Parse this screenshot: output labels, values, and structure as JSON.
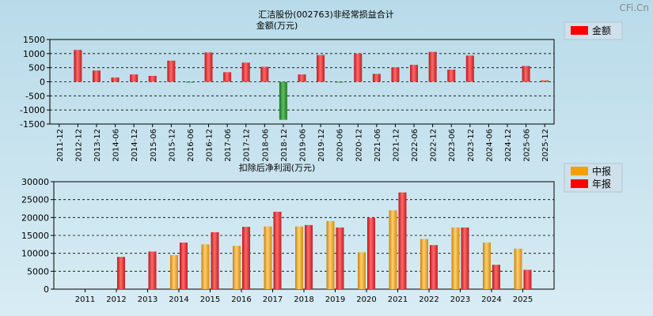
{
  "watermark": "CFi.Cn",
  "colors": {
    "red": "#e8383c",
    "orange": "#f0a020",
    "green": "#2f8f34",
    "grid": "#000000"
  },
  "chart_data": [
    {
      "type": "bar",
      "title": "汇洁股份(002763)非经常损益合计",
      "ylabel": "金额(万元)",
      "legend": {
        "position": "top-right",
        "entries": [
          "金额"
        ]
      },
      "grid": true,
      "ylim": [
        -1500,
        1500
      ],
      "yticks": [
        1500,
        1000,
        500,
        0,
        -500,
        -1000,
        -1500
      ],
      "categories": [
        "2011-12",
        "2012-12",
        "2013-12",
        "2014-06",
        "2014-12",
        "2015-06",
        "2015-12",
        "2016-06",
        "2016-12",
        "2017-06",
        "2017-12",
        "2018-06",
        "2018-12",
        "2019-06",
        "2019-12",
        "2020-06",
        "2020-12",
        "2021-06",
        "2021-12",
        "2022-06",
        "2022-12",
        "2023-06",
        "2023-12",
        "2024-06",
        "2024-12",
        "2025-06",
        "2025-12"
      ],
      "series": [
        {
          "name": "金额",
          "values": [
            0,
            1130,
            400,
            150,
            260,
            210,
            750,
            -30,
            1040,
            340,
            680,
            530,
            -1350,
            260,
            950,
            -30,
            1000,
            280,
            510,
            600,
            1060,
            430,
            930,
            0,
            0,
            560,
            50
          ]
        }
      ]
    },
    {
      "type": "bar",
      "title": "扣除后净利润(万元)",
      "legend": {
        "position": "top-right",
        "entries": [
          "中报",
          "年报"
        ]
      },
      "grid": true,
      "ylim": [
        0,
        30000
      ],
      "yticks": [
        30000,
        25000,
        20000,
        15000,
        10000,
        5000,
        0
      ],
      "categories": [
        "2011",
        "2012",
        "2013",
        "2014",
        "2015",
        "2016",
        "2017",
        "2018",
        "2019",
        "2020",
        "2021",
        "2022",
        "2023",
        "2024",
        "2025"
      ],
      "series": [
        {
          "name": "中报",
          "values": [
            0,
            0,
            0,
            9500,
            12500,
            12100,
            17500,
            17500,
            19000,
            10300,
            22000,
            14000,
            17200,
            13000,
            11300
          ]
        },
        {
          "name": "年报",
          "values": [
            0,
            9000,
            10500,
            13000,
            15900,
            17400,
            21600,
            17900,
            17200,
            19900,
            27000,
            12300,
            17200,
            6800,
            5400
          ]
        }
      ]
    }
  ]
}
